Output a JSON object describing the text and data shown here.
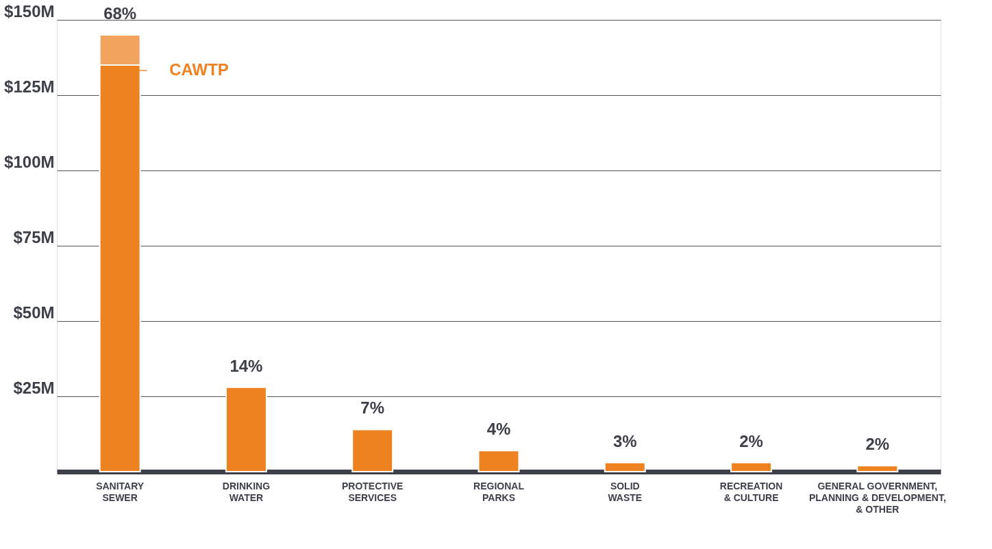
{
  "chart_data": {
    "type": "bar",
    "stacked": true,
    "categories": [
      "SANITARY\nSEWER",
      "DRINKING\nWATER",
      "PROTECTIVE\nSERVICES",
      "REGIONAL\nPARKS",
      "SOLID\nWASTE",
      "RECREATION\n& CULTURE",
      "GENERAL GOVERNMENT,\nPLANNING & DEVELOPMENT,\n& OTHER"
    ],
    "series": [
      {
        "name": "CAWTP",
        "color": "#ee8220",
        "values": [
          135,
          null,
          null,
          null,
          null,
          null,
          null
        ]
      },
      {
        "color": "#ee8220",
        "values": [
          null,
          28,
          14,
          7,
          3,
          3,
          2
        ]
      },
      {
        "color": "#f2a35e",
        "values": [
          10,
          null,
          null,
          null,
          null,
          null,
          null
        ]
      }
    ],
    "annotations": [
      {
        "text": "68%",
        "x": "SANITARY\nSEWER",
        "y": 145
      },
      {
        "text": "14%",
        "x": "DRINKING\nWATER",
        "y": 28
      },
      {
        "text": "7%",
        "x": "PROTECTIVE\nSERVICES",
        "y": 14
      },
      {
        "text": "4%",
        "x": "REGIONAL\nPARKS",
        "y": 7
      },
      {
        "text": "3%",
        "x": "SOLID\nWASTE",
        "y": 3
      },
      {
        "text": "2%",
        "x": "RECREATION\n& CULTURE",
        "y": 3
      },
      {
        "text": "2%",
        "x": "GENERAL GOVERNMENT,\nPLANNING & DEVELOPMENT,\n& OTHER",
        "y": 2
      }
    ],
    "ylim": [
      0,
      150
    ],
    "yticks": [
      {
        "value": 25,
        "label": "$25M"
      },
      {
        "value": 50,
        "label": "$50M"
      },
      {
        "value": 75,
        "label": "$75M"
      },
      {
        "value": 100,
        "label": "$100M"
      },
      {
        "value": 125,
        "label": "$125M"
      },
      {
        "value": 150,
        "label": "$150M"
      }
    ],
    "grid": "y"
  }
}
